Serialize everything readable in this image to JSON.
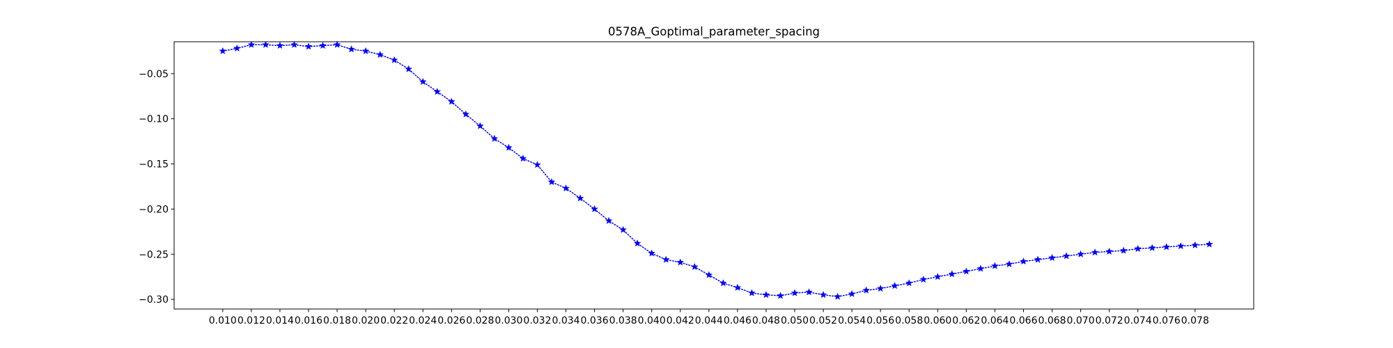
{
  "chart_data": {
    "type": "line",
    "title": "0578A_Goptimal_parameter_spacing",
    "xlabel": "",
    "ylabel": "",
    "grid": false,
    "x_ticks": [
      "0.010",
      "0.012",
      "0.014",
      "0.016",
      "0.018",
      "0.020",
      "0.022",
      "0.024",
      "0.026",
      "0.028",
      "0.030",
      "0.032",
      "0.034",
      "0.036",
      "0.038",
      "0.040",
      "0.042",
      "0.044",
      "0.046",
      "0.048",
      "0.050",
      "0.052",
      "0.054",
      "0.056",
      "0.058",
      "0.060",
      "0.062",
      "0.064",
      "0.066",
      "0.068",
      "0.070",
      "0.072",
      "0.074",
      "0.076",
      "0.078"
    ],
    "y_ticks": [
      "−0.05",
      "−0.10",
      "−0.15",
      "−0.20",
      "−0.25",
      "−0.30"
    ],
    "y_tick_values": [
      -0.05,
      -0.1,
      -0.15,
      -0.2,
      -0.25,
      -0.3
    ],
    "xlim": [
      0.0066,
      0.0821
    ],
    "ylim": [
      -0.3107,
      -0.0147
    ],
    "style": {
      "color": "#0000ff",
      "linestyle": "dotted",
      "marker": "star"
    },
    "series": [
      {
        "x": [
          0.01,
          0.011,
          0.012,
          0.013,
          0.014,
          0.015,
          0.016,
          0.017,
          0.018,
          0.019,
          0.02,
          0.021,
          0.022,
          0.023,
          0.024,
          0.025,
          0.026,
          0.027,
          0.028,
          0.029,
          0.03,
          0.031,
          0.032,
          0.033,
          0.034,
          0.035,
          0.036,
          0.037,
          0.038,
          0.039,
          0.04,
          0.041,
          0.042,
          0.043,
          0.044,
          0.045,
          0.046,
          0.047,
          0.048,
          0.049,
          0.05,
          0.051,
          0.052,
          0.053,
          0.054,
          0.055,
          0.056,
          0.057,
          0.058,
          0.059,
          0.06,
          0.061,
          0.062,
          0.063,
          0.064,
          0.065,
          0.066,
          0.067,
          0.068,
          0.069,
          0.07,
          0.071,
          0.072,
          0.073,
          0.074,
          0.075,
          0.076,
          0.077,
          0.078,
          0.079
        ],
        "y": [
          -0.025,
          -0.022,
          -0.018,
          -0.018,
          -0.019,
          -0.018,
          -0.02,
          -0.019,
          -0.018,
          -0.023,
          -0.025,
          -0.029,
          -0.035,
          -0.045,
          -0.059,
          -0.07,
          -0.081,
          -0.095,
          -0.108,
          -0.122,
          -0.132,
          -0.144,
          -0.151,
          -0.17,
          -0.177,
          -0.188,
          -0.2,
          -0.213,
          -0.223,
          -0.238,
          -0.249,
          -0.256,
          -0.259,
          -0.264,
          -0.273,
          -0.282,
          -0.287,
          -0.293,
          -0.295,
          -0.296,
          -0.293,
          -0.292,
          -0.295,
          -0.297,
          -0.294,
          -0.29,
          -0.288,
          -0.285,
          -0.282,
          -0.278,
          -0.275,
          -0.272,
          -0.269,
          -0.266,
          -0.263,
          -0.261,
          -0.258,
          -0.256,
          -0.254,
          -0.252,
          -0.25,
          -0.248,
          -0.247,
          -0.246,
          -0.244,
          -0.243,
          -0.242,
          -0.241,
          -0.24,
          -0.239
        ]
      }
    ]
  }
}
